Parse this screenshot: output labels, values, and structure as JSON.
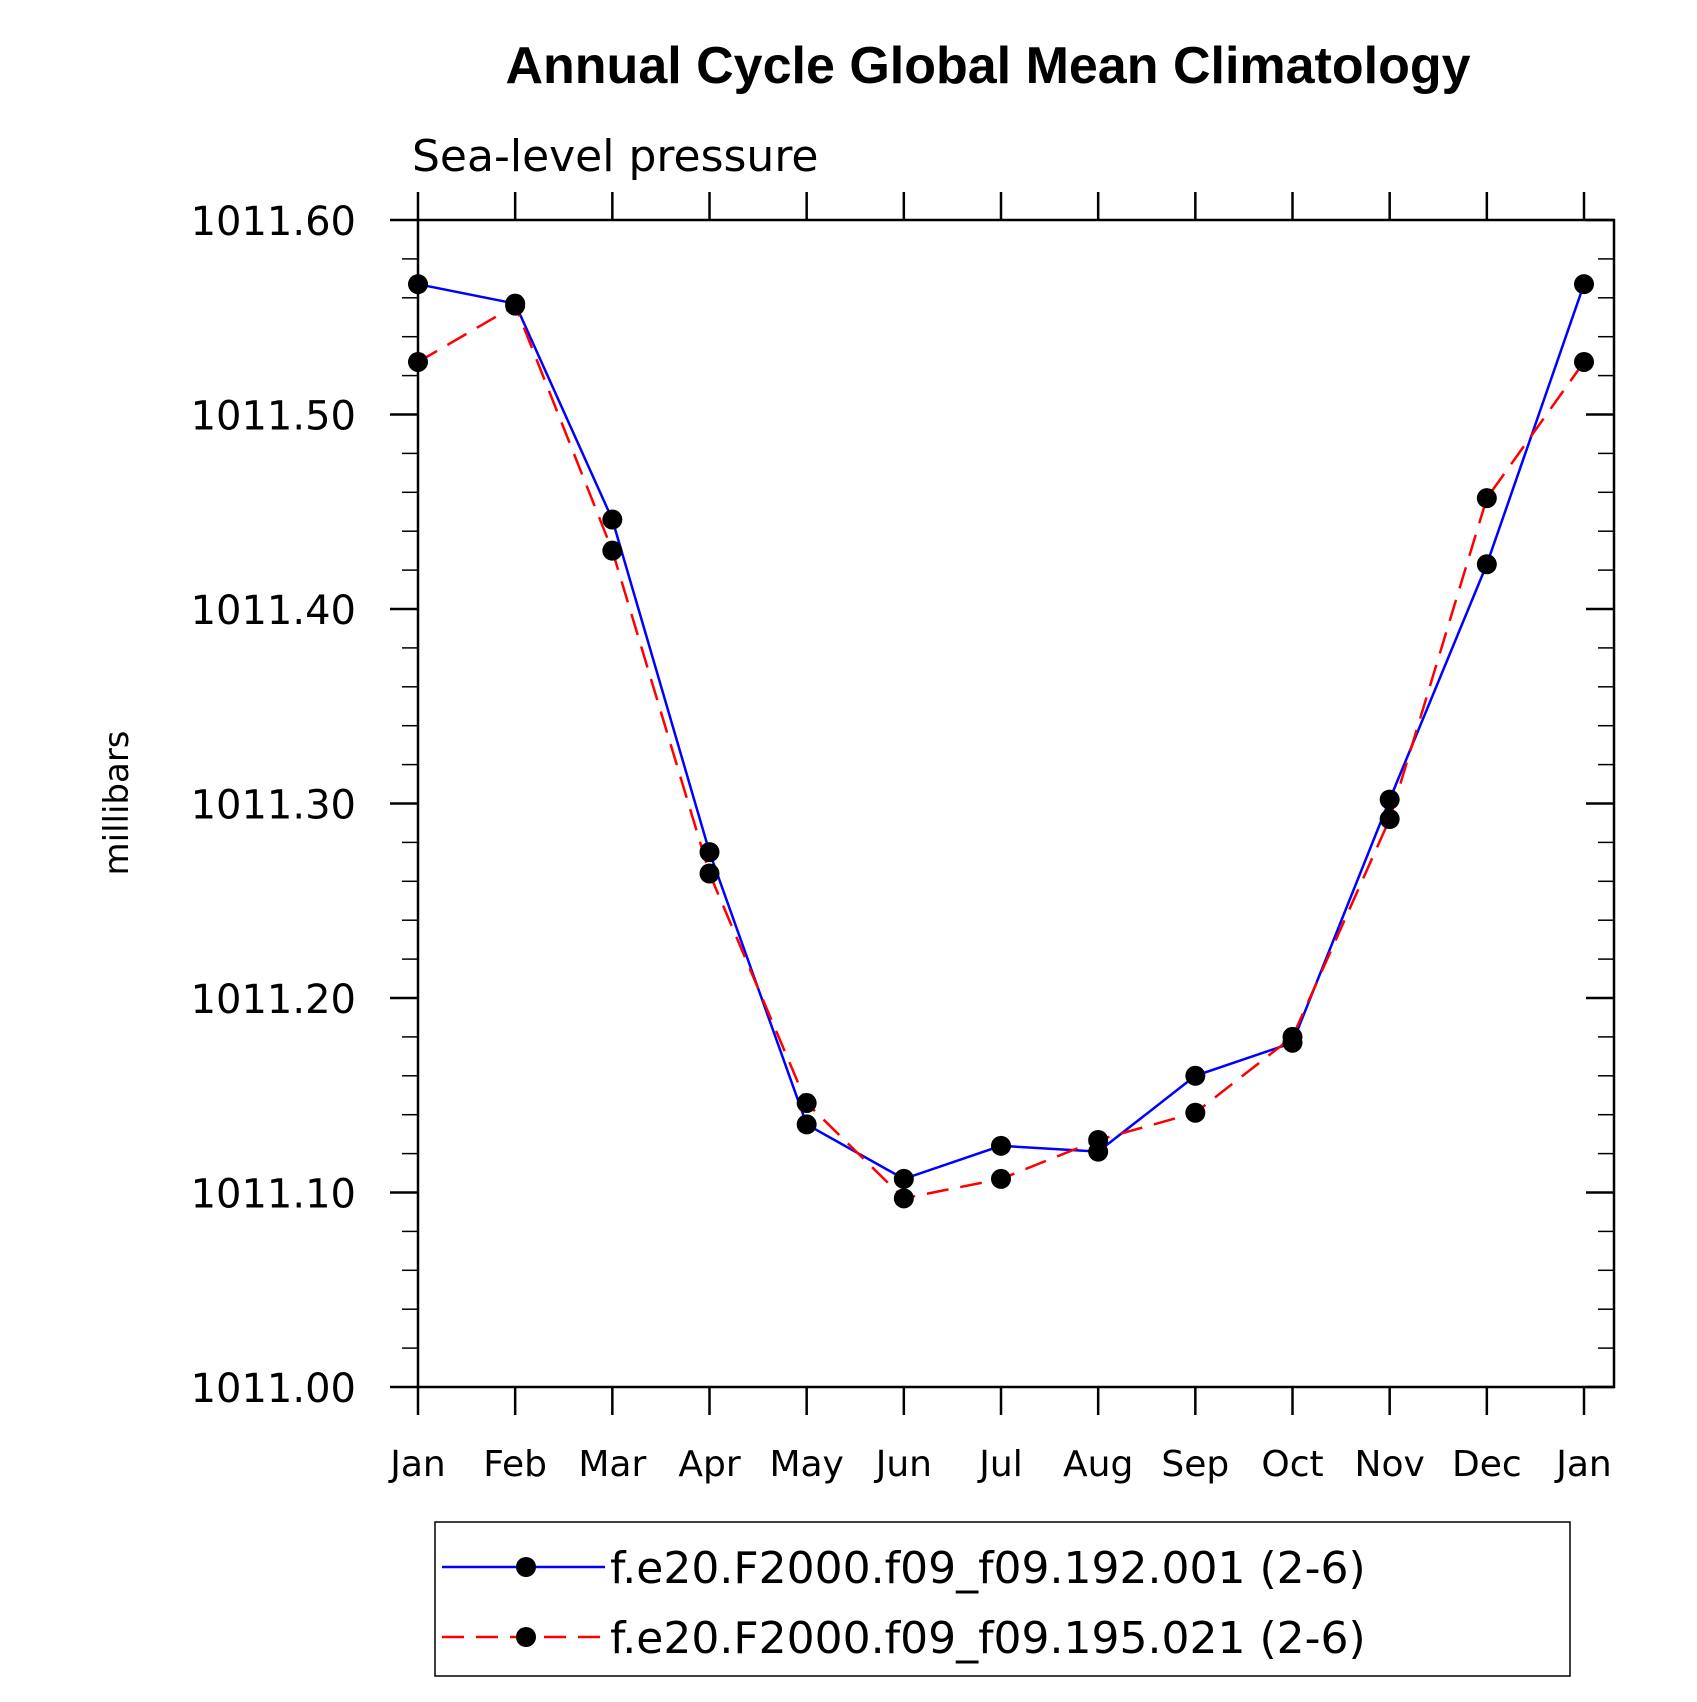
{
  "chart_data": {
    "type": "line",
    "title": "Annual Cycle Global Mean Climatology",
    "subtitle": "Sea-level pressure",
    "xlabel": "",
    "ylabel": "millibars",
    "categories": [
      "Jan",
      "Feb",
      "Mar",
      "Apr",
      "May",
      "Jun",
      "Jul",
      "Aug",
      "Sep",
      "Oct",
      "Nov",
      "Dec",
      "Jan"
    ],
    "ylim": [
      1011.0,
      1011.6
    ],
    "yticks": [
      "1011.00",
      "1011.10",
      "1011.20",
      "1011.30",
      "1011.40",
      "1011.50",
      "1011.60"
    ],
    "yminor_step": 0.02,
    "grid": false,
    "legend_position": "bottom",
    "series": [
      {
        "name": "f.e20.F2000.f09_f09.192.001 (2-6)",
        "color": "#0000ff",
        "dash": "solid",
        "marker": "filled-circle",
        "values": [
          1011.567,
          1011.557,
          1011.446,
          1011.275,
          1011.135,
          1011.107,
          1011.124,
          1011.121,
          1011.16,
          1011.177,
          1011.302,
          1011.423,
          1011.567
        ]
      },
      {
        "name": "f.e20.F2000.f09_f09.195.021 (2-6)",
        "color": "#ff0000",
        "dash": "dashed",
        "marker": "filled-circle",
        "values": [
          1011.527,
          1011.556,
          1011.43,
          1011.264,
          1011.146,
          1011.097,
          1011.107,
          1011.127,
          1011.141,
          1011.18,
          1011.292,
          1011.457,
          1011.527
        ]
      }
    ]
  }
}
